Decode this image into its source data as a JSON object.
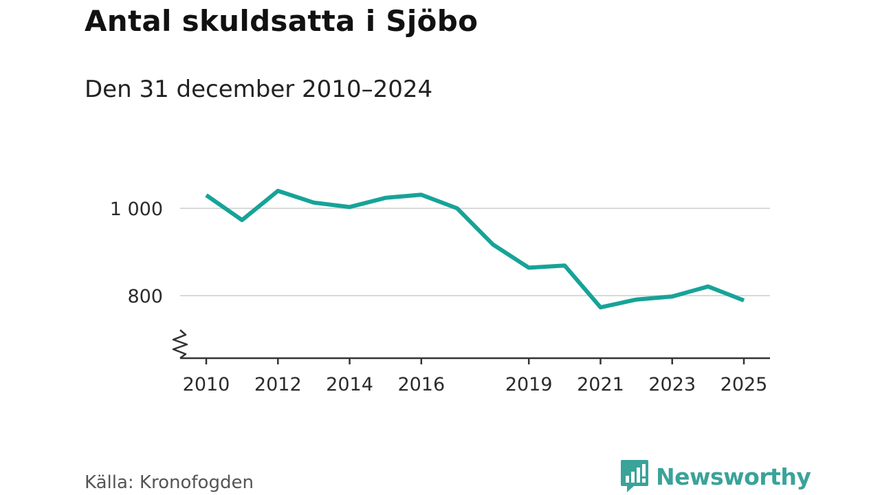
{
  "header": {
    "title": "Antal skuldsatta i Sjöbo",
    "subtitle": "Den 31 december 2010–2024"
  },
  "footer": {
    "source": "Källa: Kronofogden",
    "brand": "Newsworthy",
    "brand_icon": "bar-chart-speech-bubble-icon"
  },
  "colors": {
    "line": "#17a398",
    "grid": "#d9d9d9",
    "axis": "#333333",
    "brand": "#3aa39a"
  },
  "chart_data": {
    "type": "line",
    "title": "Antal skuldsatta i Sjöbo",
    "subtitle": "Den 31 december 2010–2024",
    "xlabel": "",
    "ylabel": "",
    "grid": true,
    "y_axis_break": true,
    "ylim": [
      660,
      1060
    ],
    "xlim": [
      2010,
      2025
    ],
    "y_ticks": [
      {
        "value": 800,
        "label": "800"
      },
      {
        "value": 1000,
        "label": "1 000"
      }
    ],
    "x_ticks": [
      {
        "value": 2010,
        "label": "2010"
      },
      {
        "value": 2012,
        "label": "2012"
      },
      {
        "value": 2014,
        "label": "2014"
      },
      {
        "value": 2016,
        "label": "2016"
      },
      {
        "value": 2019,
        "label": "2019"
      },
      {
        "value": 2021,
        "label": "2021"
      },
      {
        "value": 2023,
        "label": "2023"
      },
      {
        "value": 2025,
        "label": "2025"
      }
    ],
    "series": [
      {
        "x": [
          2010,
          2011,
          2012,
          2013,
          2014,
          2015,
          2016,
          2017,
          2018,
          2019,
          2020,
          2021,
          2022,
          2023,
          2024,
          2025
        ],
        "values": [
          1030,
          973,
          1040,
          1013,
          1003,
          1024,
          1031,
          1000,
          917,
          864,
          869,
          773,
          791,
          798,
          821,
          789
        ]
      }
    ]
  }
}
